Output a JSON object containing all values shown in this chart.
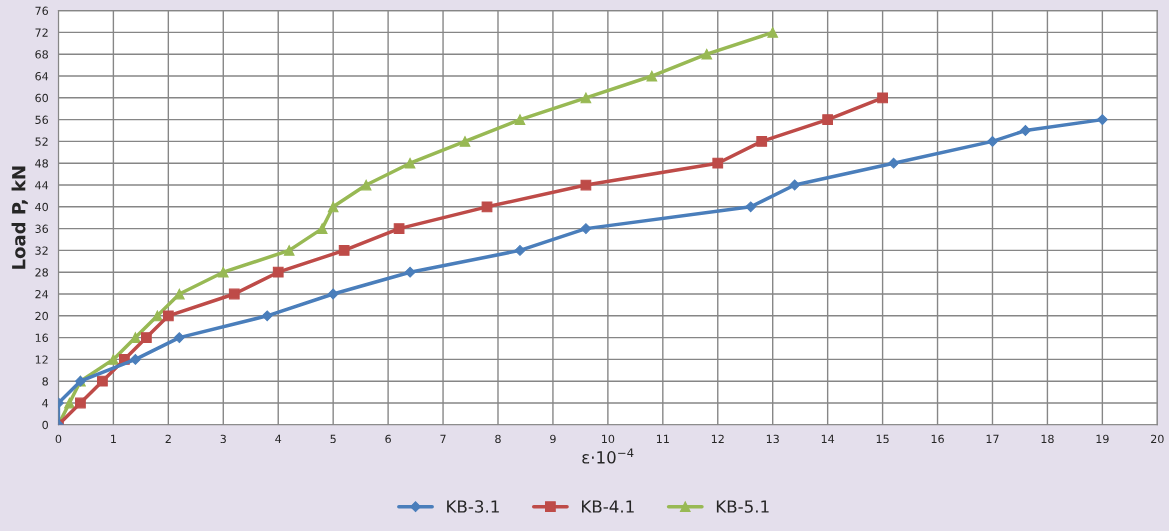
{
  "chart_data": {
    "type": "line",
    "xlabel": "ε·10$^{−4}$",
    "ylabel": "Load P, kN",
    "xlim": [
      0,
      20
    ],
    "ylim": [
      0,
      76
    ],
    "xticks": [
      0,
      1,
      2,
      3,
      4,
      5,
      6,
      7,
      8,
      9,
      10,
      11,
      12,
      13,
      14,
      15,
      16,
      17,
      18,
      19,
      20
    ],
    "yticks": [
      0,
      4,
      8,
      12,
      16,
      20,
      24,
      28,
      32,
      36,
      40,
      44,
      48,
      52,
      56,
      60,
      64,
      68,
      72,
      76
    ],
    "grid": true,
    "legend": "bottom",
    "line_style": "solid",
    "series": [
      {
        "name": "KB-3.1",
        "color": "#4a7ebb",
        "marker": "diamond",
        "x": [
          0,
          0,
          0.4,
          1.4,
          2.2,
          3.8,
          5,
          6.4,
          8.4,
          9.6,
          12.6,
          13.4,
          15.2,
          17,
          17.6,
          19
        ],
        "values": [
          0,
          4,
          8,
          12,
          16,
          20,
          24,
          28,
          32,
          36,
          40,
          44,
          48,
          52,
          54,
          56
        ]
      },
      {
        "name": "KB-4.1",
        "color": "#be4b48",
        "marker": "square",
        "x": [
          0,
          0.4,
          0.8,
          1.2,
          1.6,
          2,
          3.2,
          4,
          5.2,
          6.2,
          7.8,
          9.6,
          12,
          12.8,
          14,
          15
        ],
        "values": [
          0,
          4,
          8,
          12,
          16,
          20,
          24,
          28,
          32,
          36,
          40,
          44,
          48,
          52,
          56,
          60
        ]
      },
      {
        "name": "KB-5.1",
        "color": "#98b954",
        "marker": "triangle",
        "x": [
          0,
          0.2,
          0.4,
          1,
          1.4,
          1.8,
          2.2,
          3,
          4.2,
          4.8,
          5,
          5.6,
          6.4,
          7.4,
          8.4,
          9.6,
          10.8,
          11.8,
          13
        ],
        "values": [
          0,
          4,
          8,
          12,
          16,
          20,
          24,
          28,
          32,
          36,
          40,
          44,
          48,
          52,
          56,
          60,
          64,
          68,
          72
        ]
      }
    ]
  }
}
